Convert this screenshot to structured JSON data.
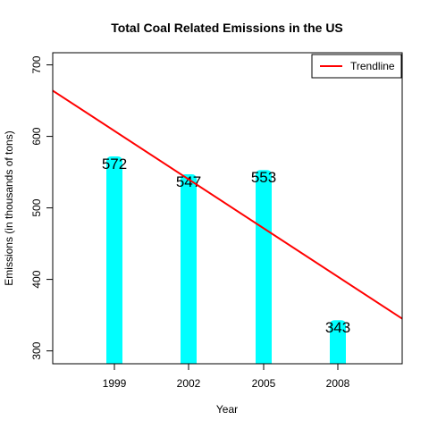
{
  "chart_data": {
    "type": "bar",
    "title": "Total Coal Related Emissions in the US",
    "xlabel": "Year",
    "ylabel": "Emissions (in thousands of tons)",
    "categories": [
      "1999",
      "2002",
      "2005",
      "2008"
    ],
    "values": [
      572,
      547,
      553,
      343
    ],
    "data_labels": [
      "572",
      "547",
      "553",
      "343"
    ],
    "ylim": [
      282,
      717
    ],
    "yticks": [
      300,
      400,
      500,
      600,
      700
    ],
    "ytick_labels": [
      "300",
      "400",
      "500",
      "600",
      "700"
    ],
    "bar_color": "#00FFFF",
    "grid": false,
    "trendline": {
      "name": "Trendline",
      "color": "#FF0000",
      "start_value": 664,
      "end_value": 345
    },
    "legend": {
      "placement": "top-right",
      "entries": [
        "Trendline"
      ]
    }
  }
}
